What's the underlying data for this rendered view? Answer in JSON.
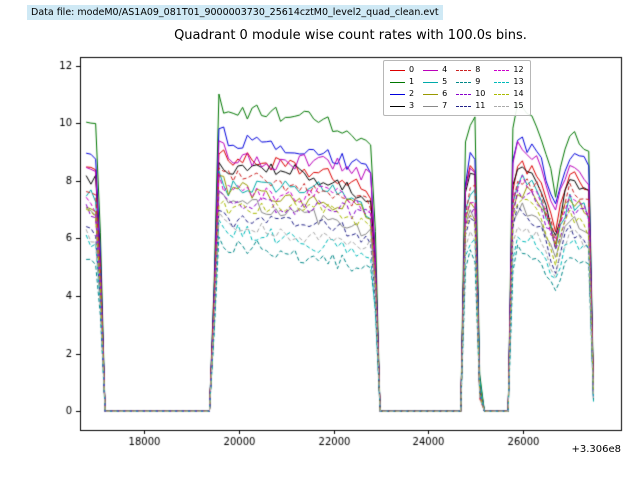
{
  "banner": {
    "label": "Data file: modeM0/AS1A09_081T01_9000003730_25614cztM0_level2_quad_clean.evt",
    "bg_color": "#cfe9f5"
  },
  "title": "Quadrant 0 module wise count rates with 100.0s bins.",
  "chart_data": {
    "type": "line",
    "title": "Quadrant 0 module wise count rates with 100.0s bins.",
    "xlabel": "",
    "ylabel": "",
    "x_offset_label": "+3.306e8",
    "xlim": [
      16650,
      28060
    ],
    "ylim": [
      -0.65,
      12.3
    ],
    "xticks": [
      18000,
      20000,
      22000,
      24000,
      26000
    ],
    "yticks": [
      0,
      2,
      4,
      6,
      8,
      10,
      12
    ],
    "grid": false,
    "legend_position": "upper center-right",
    "legend_columns": 4,
    "time_step": 100,
    "noise_amp": 0.27,
    "profile_points": [
      [
        16780,
        0.93
      ],
      [
        17040,
        0.9
      ],
      [
        17150,
        0.0
      ],
      [
        19420,
        0.0
      ],
      [
        19560,
        1.02
      ],
      [
        19760,
        0.97
      ],
      [
        21000,
        0.95
      ],
      [
        22000,
        0.93
      ],
      [
        22840,
        0.86
      ],
      [
        22960,
        0.0
      ],
      [
        24680,
        0.0
      ],
      [
        24790,
        0.93
      ],
      [
        24990,
        0.92
      ],
      [
        25090,
        0.0
      ],
      [
        25680,
        0.0
      ],
      [
        25790,
        0.99
      ],
      [
        26300,
        0.95
      ],
      [
        26680,
        0.72
      ],
      [
        26950,
        0.93
      ],
      [
        27420,
        0.86
      ],
      [
        27480,
        0.07
      ]
    ],
    "series": [
      {
        "name": "0",
        "color": "#dd0000",
        "dash": false,
        "level": 8.9
      },
      {
        "name": "1",
        "color": "#007700",
        "dash": false,
        "level": 10.7
      },
      {
        "name": "2",
        "color": "#0000dd",
        "dash": false,
        "level": 9.6
      },
      {
        "name": "3",
        "color": "#000000",
        "dash": false,
        "level": 8.7
      },
      {
        "name": "4",
        "color": "#bb00bb",
        "dash": false,
        "level": 9.2
      },
      {
        "name": "5",
        "color": "#00aaaa",
        "dash": false,
        "level": 8.1
      },
      {
        "name": "6",
        "color": "#999900",
        "dash": false,
        "level": 7.9
      },
      {
        "name": "7",
        "color": "#888888",
        "dash": false,
        "level": 7.3
      },
      {
        "name": "8",
        "color": "#cc2222",
        "dash": true,
        "level": 8.3
      },
      {
        "name": "9",
        "color": "#008888",
        "dash": true,
        "level": 5.8
      },
      {
        "name": "10",
        "color": "#8800cc",
        "dash": true,
        "level": 7.6
      },
      {
        "name": "11",
        "color": "#222288",
        "dash": true,
        "level": 6.9
      },
      {
        "name": "12",
        "color": "#cc00cc",
        "dash": true,
        "level": 8.0
      },
      {
        "name": "13",
        "color": "#00bbbb",
        "dash": true,
        "level": 6.3
      },
      {
        "name": "14",
        "color": "#aabb00",
        "dash": true,
        "level": 7.4
      },
      {
        "name": "15",
        "color": "#aaaaaa",
        "dash": true,
        "level": 6.6
      }
    ]
  }
}
